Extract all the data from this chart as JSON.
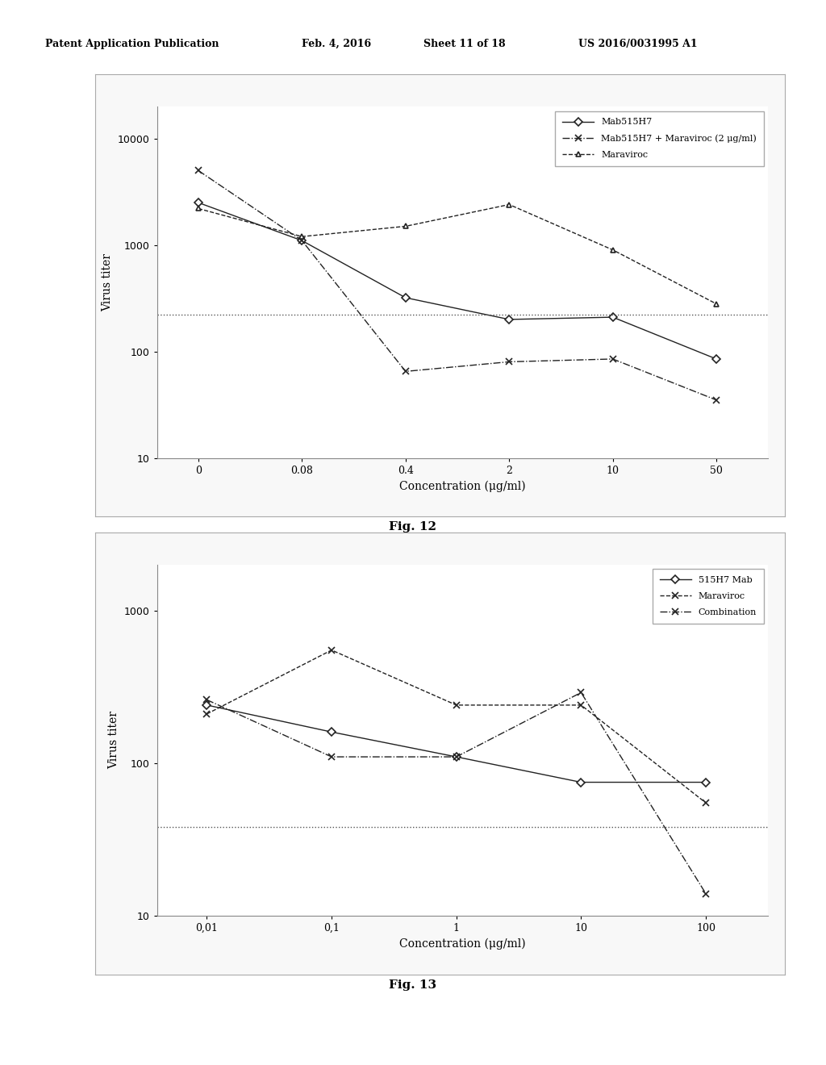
{
  "fig12": {
    "xlabel": "Concentration (μg/ml)",
    "ylabel": "Virus titer",
    "fig_caption": "Fig. 12",
    "xticklabels": [
      "0",
      "0.08",
      "0.4",
      "2",
      "10",
      "50"
    ],
    "x_positions": [
      1,
      2,
      3,
      4,
      5,
      6
    ],
    "ylim": [
      10,
      20000
    ],
    "yticks": [
      10,
      100,
      1000,
      10000
    ],
    "ytick_labels": [
      "10",
      "100",
      "1000",
      "10000"
    ],
    "hline_y": 220,
    "series": [
      {
        "label": "Mab515H7",
        "x": [
          1,
          2,
          3,
          4,
          5,
          6
        ],
        "y": [
          2500,
          1100,
          320,
          200,
          210,
          85
        ],
        "linestyle": "-",
        "marker": "D",
        "color": "#222222",
        "markersize": 5
      },
      {
        "label": "Mab515H7 + Maraviroc (2 μg/ml)",
        "x": [
          1,
          2,
          3,
          4,
          5,
          6
        ],
        "y": [
          5000,
          1100,
          65,
          80,
          85,
          35
        ],
        "linestyle": "-.",
        "marker": "x",
        "color": "#222222",
        "markersize": 6
      },
      {
        "label": "Maraviroc",
        "x": [
          1,
          2,
          3,
          4,
          5,
          6
        ],
        "y": [
          2200,
          1200,
          1500,
          2400,
          900,
          280
        ],
        "linestyle": "--",
        "marker": "^",
        "color": "#222222",
        "markersize": 5
      }
    ]
  },
  "fig13": {
    "xlabel": "Concentration (μg/ml)",
    "ylabel": "Virus titer",
    "fig_caption": "Fig. 13",
    "xticklabels": [
      "0,01",
      "0,1",
      "1",
      "10",
      "100"
    ],
    "x_positions": [
      1,
      2,
      3,
      4,
      5
    ],
    "ylim": [
      10,
      2000
    ],
    "yticks": [
      10,
      100,
      1000
    ],
    "ytick_labels": [
      "10",
      "100",
      "1000"
    ],
    "hline_y": 38,
    "series": [
      {
        "label": "515H7 Mab",
        "x": [
          1,
          2,
          3,
          4,
          5
        ],
        "y": [
          240,
          160,
          110,
          75,
          75
        ],
        "linestyle": "-",
        "marker": "D",
        "color": "#222222",
        "markersize": 5
      },
      {
        "label": "Maraviroc",
        "x": [
          1,
          2,
          3,
          4,
          5
        ],
        "y": [
          210,
          550,
          240,
          240,
          55
        ],
        "linestyle": "--",
        "marker": "x",
        "color": "#222222",
        "markersize": 6
      },
      {
        "label": "Combination",
        "x": [
          1,
          2,
          3,
          4,
          5
        ],
        "y": [
          260,
          110,
          110,
          290,
          14
        ],
        "linestyle": "-.",
        "marker": "x",
        "color": "#222222",
        "markersize": 6
      }
    ]
  },
  "header_left": "Patent Application Publication",
  "header_mid1": "Feb. 4, 2016",
  "header_mid2": "Sheet 11 of 18",
  "header_right": "US 2016/0031995 A1",
  "page_bg": "#ffffff",
  "plot_bg": "#ffffff",
  "box_color": "#aaaaaa"
}
